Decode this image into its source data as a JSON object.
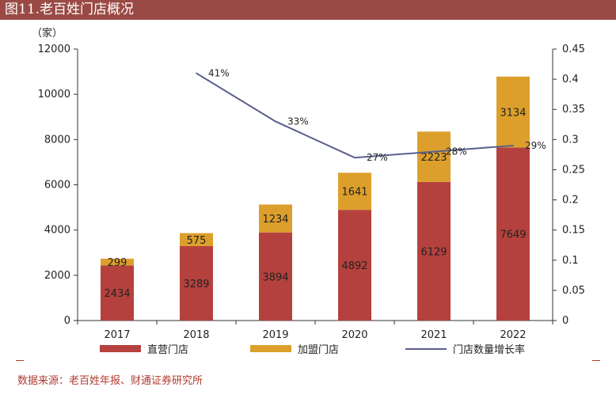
{
  "title": "图11.老百姓门店概况",
  "source": "数据来源：老百姓年报、财通证券研究所",
  "colors": {
    "title_bg": "#9a4a44",
    "direct": "#b5413e",
    "franchise": "#dd9f2c",
    "growth": "#5a5f8c",
    "source_text": "#b03a2e"
  },
  "chart_data": {
    "type": "bar",
    "stacked": true,
    "categories": [
      "2017",
      "2018",
      "2019",
      "2020",
      "2021",
      "2022"
    ],
    "series": [
      {
        "name": "直营门店",
        "values": [
          2434,
          3289,
          3894,
          4892,
          6129,
          7649
        ],
        "color": "#b5413e",
        "axis": "left"
      },
      {
        "name": "加盟门店",
        "values": [
          299,
          575,
          1234,
          1641,
          2223,
          3134
        ],
        "color": "#dd9f2c",
        "axis": "left"
      },
      {
        "name": "门店数量增长率",
        "type": "line",
        "axis": "right",
        "color": "#5a5f8c",
        "x": [
          "2018",
          "2019",
          "2020",
          "2021",
          "2022"
        ],
        "values": [
          0.41,
          0.33,
          0.27,
          0.28,
          0.29
        ],
        "labels": [
          "41%",
          "33%",
          "27%",
          "28%",
          "29%"
        ]
      }
    ],
    "ylabel": "（家）",
    "ylim": [
      0,
      12000
    ],
    "yticks": [
      "0",
      "2000",
      "4000",
      "6000",
      "8000",
      "10000",
      "12000"
    ],
    "y2lim": [
      0,
      0.45
    ],
    "y2ticks": [
      "0",
      "0.05",
      "0.1",
      "0.15",
      "0.2",
      "0.25",
      "0.3",
      "0.35",
      "0.4",
      "0.45"
    ],
    "grid": false,
    "legend_position": "bottom"
  }
}
